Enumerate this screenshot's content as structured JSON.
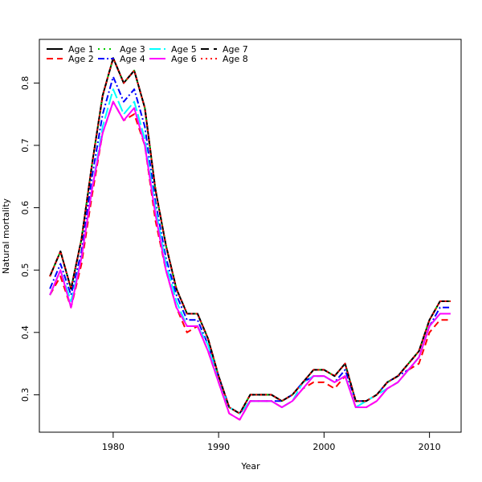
{
  "chart_data": {
    "type": "line",
    "title": "",
    "xlabel": "Year",
    "ylabel": "Natural mortality",
    "xlim": [
      1973,
      2013
    ],
    "ylim": [
      0.24,
      0.87
    ],
    "xticks": [
      1980,
      1990,
      2000,
      2010
    ],
    "yticks": [
      0.3,
      0.4,
      0.5,
      0.6,
      0.7,
      0.8
    ],
    "legend_position": "top-left",
    "grid": false,
    "x": [
      1974,
      1975,
      1976,
      1977,
      1978,
      1979,
      1980,
      1981,
      1982,
      1983,
      1984,
      1985,
      1986,
      1987,
      1988,
      1989,
      1990,
      1991,
      1992,
      1993,
      1994,
      1995,
      1996,
      1997,
      1998,
      1999,
      2000,
      2001,
      2002,
      2003,
      2004,
      2005,
      2006,
      2007,
      2008,
      2009,
      2010,
      2011,
      2012
    ],
    "series": [
      {
        "name": "Age 1",
        "color": "#000000",
        "dash": "",
        "values": [
          0.49,
          0.53,
          0.47,
          0.55,
          0.67,
          0.78,
          0.84,
          0.8,
          0.82,
          0.76,
          0.63,
          0.54,
          0.47,
          0.43,
          0.43,
          0.39,
          0.33,
          0.28,
          0.27,
          0.3,
          0.3,
          0.3,
          0.29,
          0.3,
          0.32,
          0.34,
          0.34,
          0.33,
          0.35,
          0.29,
          0.29,
          0.3,
          0.32,
          0.33,
          0.35,
          0.37,
          0.42,
          0.45,
          0.45
        ]
      },
      {
        "name": "Age 2",
        "color": "#ff0000",
        "dash": "8,5",
        "values": [
          0.46,
          0.49,
          0.44,
          0.51,
          0.62,
          0.72,
          0.77,
          0.74,
          0.75,
          0.7,
          0.58,
          0.5,
          0.44,
          0.4,
          0.41,
          0.37,
          0.32,
          0.27,
          0.26,
          0.29,
          0.29,
          0.29,
          0.28,
          0.29,
          0.31,
          0.32,
          0.32,
          0.31,
          0.33,
          0.28,
          0.28,
          0.29,
          0.31,
          0.32,
          0.34,
          0.35,
          0.4,
          0.42,
          0.42
        ]
      },
      {
        "name": "Age 3",
        "color": "#00cd00",
        "dash": "2,5",
        "values": [
          0.49,
          0.53,
          0.47,
          0.55,
          0.67,
          0.78,
          0.84,
          0.8,
          0.82,
          0.76,
          0.63,
          0.54,
          0.47,
          0.43,
          0.43,
          0.39,
          0.33,
          0.28,
          0.27,
          0.3,
          0.3,
          0.3,
          0.29,
          0.3,
          0.32,
          0.34,
          0.34,
          0.33,
          0.35,
          0.29,
          0.29,
          0.3,
          0.32,
          0.33,
          0.35,
          0.37,
          0.42,
          0.45,
          0.45
        ]
      },
      {
        "name": "Age 4",
        "color": "#0000ff",
        "dash": "8,3,2,3",
        "values": [
          0.47,
          0.51,
          0.46,
          0.53,
          0.65,
          0.75,
          0.81,
          0.77,
          0.79,
          0.73,
          0.61,
          0.52,
          0.46,
          0.42,
          0.42,
          0.38,
          0.33,
          0.28,
          0.27,
          0.29,
          0.29,
          0.29,
          0.29,
          0.3,
          0.32,
          0.33,
          0.33,
          0.32,
          0.34,
          0.29,
          0.29,
          0.3,
          0.32,
          0.33,
          0.34,
          0.36,
          0.41,
          0.44,
          0.44
        ]
      },
      {
        "name": "Age 5",
        "color": "#00ffff",
        "dash": "14,4",
        "values": [
          0.46,
          0.5,
          0.45,
          0.52,
          0.63,
          0.73,
          0.79,
          0.75,
          0.77,
          0.71,
          0.6,
          0.51,
          0.45,
          0.41,
          0.41,
          0.38,
          0.32,
          0.28,
          0.27,
          0.29,
          0.29,
          0.29,
          0.28,
          0.29,
          0.32,
          0.33,
          0.33,
          0.32,
          0.33,
          0.28,
          0.29,
          0.3,
          0.31,
          0.32,
          0.34,
          0.36,
          0.41,
          0.43,
          0.43
        ]
      },
      {
        "name": "Age 6",
        "color": "#ff00ff",
        "dash": "",
        "values": [
          0.46,
          0.5,
          0.44,
          0.52,
          0.63,
          0.72,
          0.77,
          0.74,
          0.76,
          0.7,
          0.59,
          0.5,
          0.44,
          0.41,
          0.41,
          0.37,
          0.32,
          0.27,
          0.26,
          0.29,
          0.29,
          0.29,
          0.28,
          0.29,
          0.31,
          0.33,
          0.33,
          0.32,
          0.33,
          0.28,
          0.28,
          0.29,
          0.31,
          0.32,
          0.34,
          0.36,
          0.41,
          0.43,
          0.43
        ]
      },
      {
        "name": "Age 7",
        "color": "#000000",
        "dash": "10,6",
        "values": [
          0.49,
          0.53,
          0.47,
          0.55,
          0.67,
          0.78,
          0.84,
          0.8,
          0.82,
          0.76,
          0.63,
          0.54,
          0.47,
          0.43,
          0.43,
          0.39,
          0.33,
          0.28,
          0.27,
          0.3,
          0.3,
          0.3,
          0.29,
          0.3,
          0.32,
          0.34,
          0.34,
          0.33,
          0.35,
          0.29,
          0.29,
          0.3,
          0.32,
          0.33,
          0.35,
          0.37,
          0.42,
          0.45,
          0.45
        ]
      },
      {
        "name": "Age 8",
        "color": "#ff0000",
        "dash": "2,4",
        "values": [
          0.49,
          0.53,
          0.47,
          0.55,
          0.67,
          0.78,
          0.84,
          0.8,
          0.82,
          0.76,
          0.63,
          0.54,
          0.47,
          0.43,
          0.43,
          0.39,
          0.33,
          0.28,
          0.27,
          0.3,
          0.3,
          0.3,
          0.29,
          0.3,
          0.32,
          0.34,
          0.34,
          0.33,
          0.35,
          0.29,
          0.29,
          0.3,
          0.32,
          0.33,
          0.35,
          0.37,
          0.42,
          0.45,
          0.45
        ]
      }
    ]
  }
}
